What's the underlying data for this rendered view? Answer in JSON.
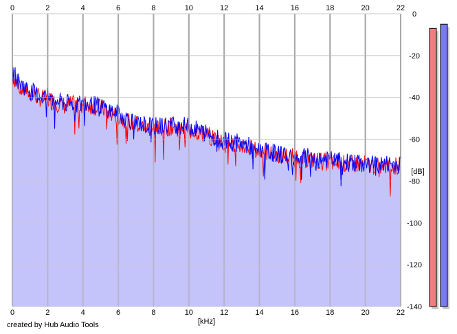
{
  "chart_data": {
    "type": "area",
    "title": "",
    "xlabel": "[kHz]",
    "ylabel": "[dB]",
    "xlim": [
      0,
      22
    ],
    "ylim": [
      -140,
      0
    ],
    "x_ticks": [
      "0",
      "2",
      "4",
      "6",
      "8",
      "10",
      "12",
      "14",
      "16",
      "18",
      "20",
      "22"
    ],
    "y_ticks": [
      "0",
      "-20",
      "-40",
      "-60",
      "-80",
      "-100",
      "-120",
      "-140"
    ],
    "grid": true,
    "fill_color": "#c4c4fa",
    "series": [
      {
        "color": "#ff0000",
        "x": [
          0,
          0.5,
          1,
          1.5,
          2,
          3,
          4,
          5,
          6,
          7,
          8,
          9,
          10,
          11,
          12,
          13,
          14,
          15,
          16,
          17,
          18,
          19,
          20,
          21,
          22
        ],
        "y": [
          -30,
          -36,
          -38,
          -40,
          -41,
          -44,
          -43,
          -45,
          -49,
          -53,
          -55,
          -54,
          -55,
          -58,
          -62,
          -63,
          -66,
          -67,
          -69,
          -70,
          -71,
          -72,
          -72,
          -73,
          -73
        ]
      },
      {
        "color": "#0000ff",
        "x": [
          0,
          0.5,
          1,
          1.5,
          2,
          3,
          4,
          5,
          6,
          7,
          8,
          9,
          10,
          11,
          12,
          13,
          14,
          15,
          16,
          17,
          18,
          19,
          20,
          21,
          22
        ],
        "y": [
          -28,
          -34,
          -37,
          -39,
          -40,
          -43,
          -43,
          -44,
          -48,
          -52,
          -54,
          -53,
          -54,
          -57,
          -61,
          -62,
          -65,
          -67,
          -68,
          -69,
          -70,
          -71,
          -72,
          -72,
          -72
        ]
      }
    ],
    "level_meters": [
      {
        "channel": "left",
        "color": "#f08080",
        "level_db": -7
      },
      {
        "channel": "right",
        "color": "#7b7bf0",
        "level_db": -5
      }
    ]
  },
  "footer": {
    "credit": "created by Hub Audio Tools"
  }
}
